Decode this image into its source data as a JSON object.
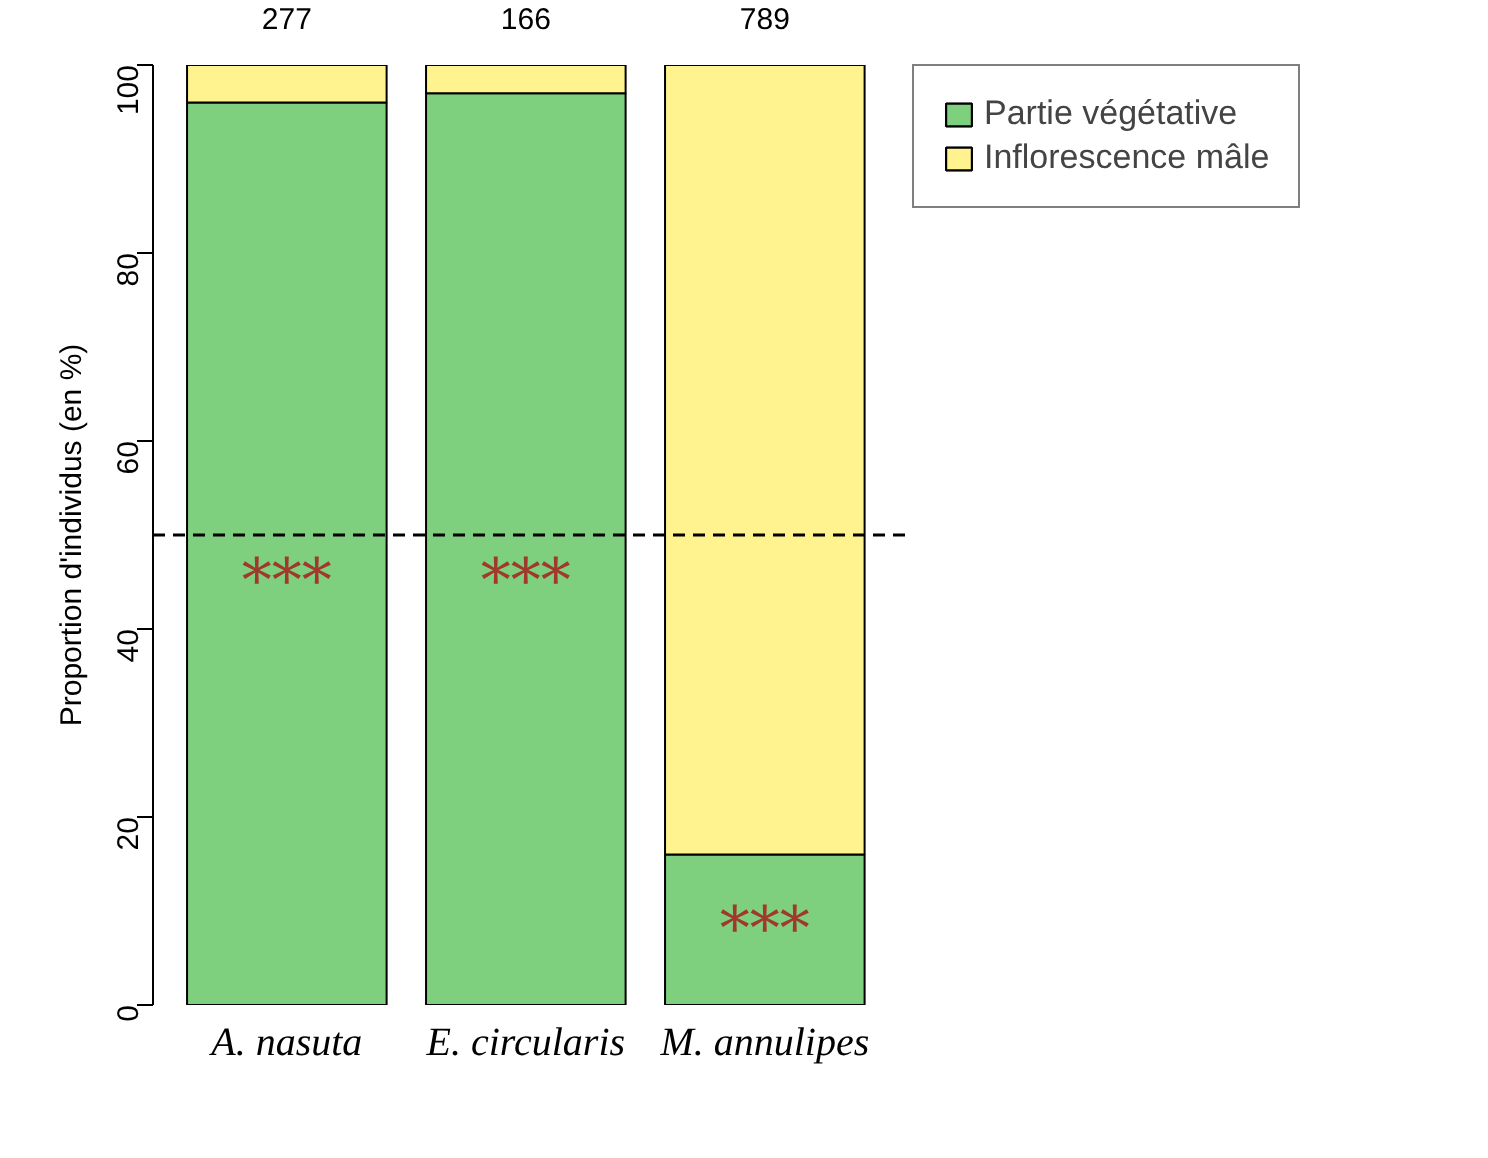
{
  "chart_data": {
    "type": "bar",
    "stacked": true,
    "ylabel": "Proportion d'individus (en %)",
    "categories": [
      "A. nasuta",
      "E. circularis",
      "M. annulipes"
    ],
    "series": [
      {
        "name": "Partie végétative",
        "color": "#7ecf7e",
        "values": [
          96,
          97,
          16
        ]
      },
      {
        "name": "Inflorescence mâle",
        "color": "#fff38f",
        "values": [
          4,
          3,
          84
        ]
      }
    ],
    "ylim": [
      0,
      100
    ],
    "yticks": [
      0,
      20,
      40,
      60,
      80,
      100
    ],
    "grid": false,
    "legend": "top right",
    "ref_lines": [
      {
        "axis": "y",
        "value": 50,
        "color": "#000000",
        "line_style": "dashed"
      }
    ],
    "annotations": [
      "277",
      "166",
      "789",
      "***",
      "***",
      "***"
    ]
  }
}
